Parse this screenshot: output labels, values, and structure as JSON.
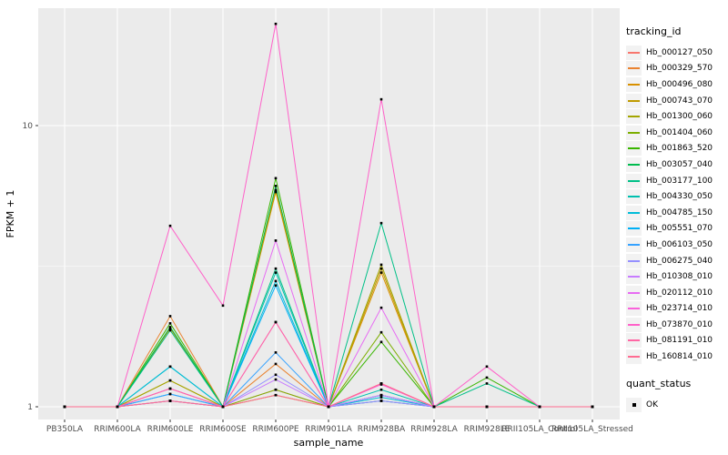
{
  "figure": {
    "background": "#FFFFFF",
    "panel_bg": "#EBEBEB",
    "grid_color": "#FFFFFF",
    "tick_color": "#333333",
    "tick_label_color": "#4D4D4D",
    "point_color": "#000000"
  },
  "axes": {
    "x_title": "sample_name",
    "y_title": "FPKM + 1",
    "y_tick_labels": [
      "1",
      "10"
    ],
    "y_tick_values": [
      1,
      10
    ],
    "y_minor_values": [
      3.1623
    ]
  },
  "legend": {
    "tracking_title": "tracking_id",
    "quant_title": "quant_status",
    "quant_item_label": "OK"
  },
  "chart_data": {
    "type": "line",
    "xlabel": "sample_name",
    "ylabel": "FPKM + 1",
    "y_scale": "log10",
    "ylim": [
      1,
      25
    ],
    "grid": true,
    "legend_position": "right",
    "point_shape": "black-square",
    "quant_status": "OK",
    "categories": [
      "PB350LA",
      "RRIM600LA",
      "RRIM600LE",
      "RRIM600SE",
      "RRIM600PE",
      "RRIM901LA",
      "RRIM928BA",
      "RRIM928LA",
      "RRIM928LE",
      "RRII105LA_Control",
      "RRII105LA_Stressed"
    ],
    "series": [
      {
        "name": "Hb_000127_050",
        "color": "#F8766D",
        "values": [
          1,
          1,
          1.05,
          1,
          1.15,
          1,
          1.21,
          1,
          1,
          1,
          1
        ]
      },
      {
        "name": "Hb_000329_570",
        "color": "#EA8331",
        "values": [
          1,
          1,
          2.1,
          1,
          1.42,
          1,
          1.05,
          1,
          1,
          1,
          1
        ]
      },
      {
        "name": "Hb_000496_080",
        "color": "#D89000",
        "values": [
          1,
          1,
          1.9,
          1,
          5.8,
          1,
          3.0,
          1,
          1,
          1,
          1
        ]
      },
      {
        "name": "Hb_000743_070",
        "color": "#C09B00",
        "values": [
          1,
          1,
          1.24,
          1,
          5.9,
          1,
          3.1,
          1,
          1,
          1,
          1
        ]
      },
      {
        "name": "Hb_001300_060",
        "color": "#A3A500",
        "values": [
          1,
          1,
          1.24,
          1,
          1.1,
          1,
          3.2,
          1,
          1,
          1,
          1
        ]
      },
      {
        "name": "Hb_001404_060",
        "color": "#7CAE00",
        "values": [
          1,
          1,
          1.05,
          1,
          1.15,
          1,
          1.84,
          1,
          1,
          1,
          1
        ]
      },
      {
        "name": "Hb_001863_520",
        "color": "#39B600",
        "values": [
          1,
          1,
          1.98,
          1,
          6.5,
          1,
          1.7,
          1,
          1.27,
          1,
          1
        ]
      },
      {
        "name": "Hb_003057_040",
        "color": "#00BB4E",
        "values": [
          1,
          1,
          1.92,
          1,
          6.1,
          1,
          1.1,
          1,
          1,
          1,
          1
        ]
      },
      {
        "name": "Hb_003177_100",
        "color": "#00C087",
        "values": [
          1,
          1,
          1.87,
          1,
          3.1,
          1,
          4.5,
          1,
          1.21,
          1,
          1
        ]
      },
      {
        "name": "Hb_004330_050",
        "color": "#00C0AF",
        "values": [
          1,
          1,
          1.39,
          1,
          3.0,
          1,
          1.15,
          1,
          1,
          1,
          1
        ]
      },
      {
        "name": "Hb_004785_150",
        "color": "#00BCD8",
        "values": [
          1,
          1,
          1.39,
          1,
          2.8,
          1,
          1.08,
          1,
          1,
          1,
          1
        ]
      },
      {
        "name": "Hb_005551_070",
        "color": "#00B0F6",
        "values": [
          1,
          1,
          1.11,
          1,
          2.7,
          1,
          1.05,
          1,
          1,
          1,
          1
        ]
      },
      {
        "name": "Hb_006103_050",
        "color": "#35A2FF",
        "values": [
          1,
          1,
          1.11,
          1,
          1.56,
          1,
          1.1,
          1,
          1,
          1,
          1
        ]
      },
      {
        "name": "Hb_006275_040",
        "color": "#9590FF",
        "values": [
          1,
          1,
          1.05,
          1,
          1.3,
          1,
          1.05,
          1,
          1,
          1,
          1
        ]
      },
      {
        "name": "Hb_010308_010",
        "color": "#C77CFF",
        "values": [
          1,
          1,
          1.05,
          1,
          1.25,
          1,
          1.1,
          1,
          1,
          1,
          1
        ]
      },
      {
        "name": "Hb_020112_010",
        "color": "#E76BF3",
        "values": [
          1,
          1,
          1.16,
          1,
          3.9,
          1,
          2.25,
          1,
          1,
          1,
          1
        ]
      },
      {
        "name": "Hb_023714_010",
        "color": "#FA62DB",
        "values": [
          1,
          1,
          1.16,
          1,
          2.0,
          1,
          1.2,
          1,
          1,
          1,
          1
        ]
      },
      {
        "name": "Hb_073870_010",
        "color": "#FF61C9",
        "values": [
          1,
          1,
          4.4,
          2.29,
          23,
          1,
          12.4,
          1,
          1.39,
          1,
          1
        ]
      },
      {
        "name": "Hb_081191_010",
        "color": "#FF67A4",
        "values": [
          1,
          1,
          1.16,
          1,
          2.0,
          1,
          1.21,
          1,
          1,
          1,
          1
        ]
      },
      {
        "name": "Hb_160814_010",
        "color": "#FF6C92",
        "values": [
          1,
          1,
          1.05,
          1,
          1.1,
          1,
          1.21,
          1,
          1,
          1,
          1
        ]
      }
    ]
  }
}
